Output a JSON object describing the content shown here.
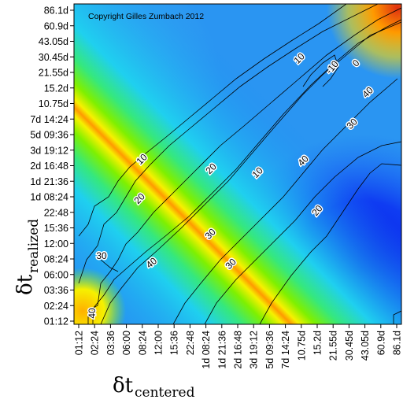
{
  "chart_data": {
    "type": "heatmap",
    "copyright": "Copyright Gilles Zumbach 2012",
    "x_ticks": [
      "01:12",
      "02:24",
      "03:36",
      "06:00",
      "08:24",
      "12:00",
      "15:36",
      "22:48",
      "1d 08:24",
      "1d 21:36",
      "2d 16:48",
      "3d 19:12",
      "5d 09:36",
      "7d 14:24",
      "10.75d",
      "15.2d",
      "21.55d",
      "30.45d",
      "43.05d",
      "60.9d",
      "86.1d"
    ],
    "y_ticks": [
      "86.1d",
      "60.9d",
      "43.05d",
      "30.45d",
      "21.55d",
      "15.2d",
      "10.75d",
      "7d 14:24",
      "5d 09:36",
      "3d 19:12",
      "2d 16:48",
      "1d 21:36",
      "1d 08:24",
      "22:48",
      "15:36",
      "12:00",
      "08:24",
      "06:00",
      "03:36",
      "02:24",
      "01:12"
    ],
    "xlabel_symbol": "δt",
    "xlabel_subscript": "centered",
    "ylabel_symbol": "δt",
    "ylabel_subscript": "realized",
    "contour_labels": [
      "40",
      "30",
      "20",
      "10",
      "40",
      "30",
      "20",
      "10",
      "40",
      "30",
      "20",
      "10",
      "0",
      "-10",
      "30",
      "40"
    ]
  }
}
